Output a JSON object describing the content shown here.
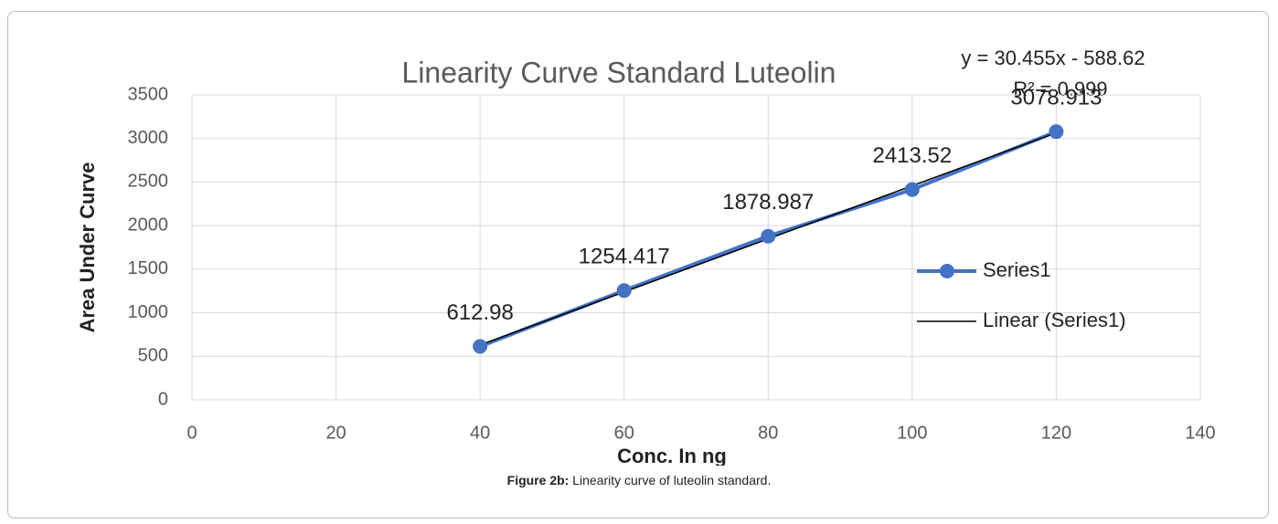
{
  "chart_data": {
    "type": "scatter",
    "title": "Linearity Curve Standard Luteolin",
    "x_label": "Conc. In ng",
    "y_label": "Area Under Curve",
    "x": [
      40,
      60,
      80,
      100,
      120
    ],
    "series": [
      {
        "name": "Series1",
        "color": "#4472c4",
        "values": [
          612.98,
          1254.417,
          1878.987,
          2413.52,
          3078.913
        ]
      }
    ],
    "trendline": {
      "name": "Linear (Series1)",
      "color": "#000000",
      "slope": 30.455,
      "intercept": -588.62,
      "equation": "y = 30.455x - 588.62",
      "r2": "R² = 0.999"
    },
    "xlim": [
      0,
      140
    ],
    "xticks": [
      0,
      20,
      40,
      60,
      80,
      100,
      120,
      140
    ],
    "ylim": [
      0,
      3500
    ],
    "yticks": [
      0,
      500,
      1000,
      1500,
      2000,
      2500,
      3000,
      3500
    ],
    "grid": true,
    "legend": "right"
  },
  "caption": {
    "label": "Figure 2b:",
    "text": "Linearity curve of luteolin standard."
  }
}
